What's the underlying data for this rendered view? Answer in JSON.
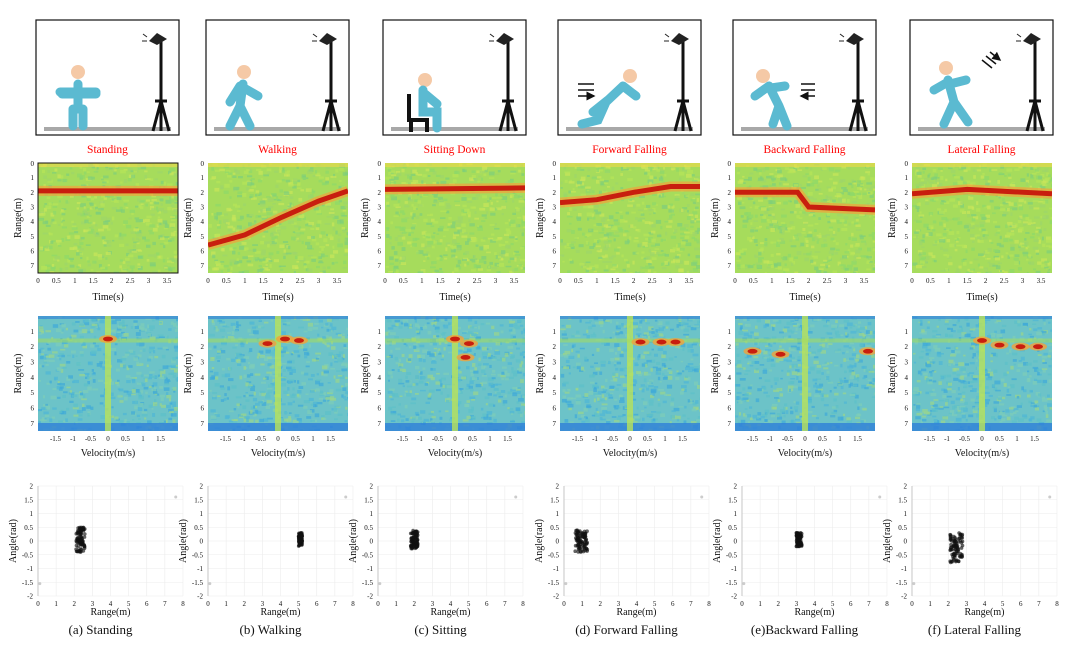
{
  "activities": [
    "Standing",
    "Walking",
    "Sitting Down",
    "Forward Falling",
    "Backward Falling",
    "Lateral Falling"
  ],
  "captions": [
    "(a) Standing",
    "(b) Walking",
    "(c) Sitting",
    "(d) Forward Falling",
    "(e)Backward Falling",
    "(f) Lateral Falling"
  ],
  "labels": {
    "range_axis": "Range(m)",
    "time_axis": "Time(s)",
    "velocity_axis": "Velocity(m/s)",
    "angle_axis": "Angle(rad)"
  },
  "colors": {
    "activity_label": "#ff0000",
    "figure": "#5bbad1",
    "floor": "#a8a8a8",
    "heatmap_background": "#a8e05a",
    "heatmap_hot": "#c81e0f"
  },
  "chart_data": [
    {
      "type": "heatmap",
      "name": "range-time maps",
      "xlabel": "Time(s)",
      "ylabel": "Range(m)",
      "x_ticks": [
        "0",
        "0.5",
        "1",
        "1.5",
        "2",
        "2.5",
        "3",
        "3.5"
      ],
      "y_ticks": [
        "1",
        "2",
        "3",
        "4",
        "5",
        "6",
        "7"
      ],
      "xlim": [
        0,
        3.8
      ],
      "ylim": [
        0,
        7.5
      ],
      "panels": [
        {
          "activity": "Standing",
          "trace": [
            [
              0,
              1.9
            ],
            [
              3.8,
              1.9
            ]
          ]
        },
        {
          "activity": "Walking",
          "trace": [
            [
              0,
              5.6
            ],
            [
              1,
              4.9
            ],
            [
              2,
              3.7
            ],
            [
              3,
              2.6
            ],
            [
              3.8,
              1.9
            ]
          ]
        },
        {
          "activity": "Sitting Down",
          "trace": [
            [
              0,
              1.8
            ],
            [
              3.8,
              1.7
            ]
          ]
        },
        {
          "activity": "Forward Falling",
          "trace": [
            [
              0,
              2.7
            ],
            [
              1,
              2.5
            ],
            [
              2,
              2.0
            ],
            [
              3,
              1.6
            ],
            [
              3.8,
              1.6
            ]
          ]
        },
        {
          "activity": "Backward Falling",
          "trace": [
            [
              0,
              2.0
            ],
            [
              1.7,
              2.0
            ],
            [
              2,
              3.0
            ],
            [
              3.8,
              3.2
            ]
          ]
        },
        {
          "activity": "Lateral Falling",
          "trace": [
            [
              0,
              2.1
            ],
            [
              1.5,
              1.8
            ],
            [
              3.8,
              2.1
            ]
          ]
        }
      ]
    },
    {
      "type": "heatmap",
      "name": "range-velocity maps",
      "xlabel": "Velocity(m/s)",
      "ylabel": "Range(m)",
      "x_ticks": [
        "-1.5",
        "-1",
        "-0.5",
        "0",
        "0.5",
        "1",
        "1.5"
      ],
      "y_ticks": [
        "1",
        "2",
        "3",
        "4",
        "5",
        "6",
        "7"
      ],
      "xlim": [
        -2,
        2
      ],
      "ylim": [
        0,
        7.5
      ],
      "panels": [
        {
          "activity": "Standing",
          "hotspots": [
            [
              0,
              1.5
            ]
          ]
        },
        {
          "activity": "Walking",
          "hotspots": [
            [
              0.2,
              1.5
            ],
            [
              0.6,
              1.6
            ],
            [
              -0.3,
              1.8
            ]
          ]
        },
        {
          "activity": "Sitting Down",
          "hotspots": [
            [
              0,
              1.5
            ],
            [
              0.4,
              1.8
            ],
            [
              0.3,
              2.7
            ]
          ]
        },
        {
          "activity": "Forward Falling",
          "hotspots": [
            [
              0.3,
              1.7
            ],
            [
              0.9,
              1.7
            ],
            [
              1.3,
              1.7
            ]
          ]
        },
        {
          "activity": "Backward Falling",
          "hotspots": [
            [
              -1.5,
              2.3
            ],
            [
              -0.7,
              2.5
            ],
            [
              1.8,
              2.3
            ]
          ]
        },
        {
          "activity": "Lateral Falling",
          "hotspots": [
            [
              0,
              1.6
            ],
            [
              0.5,
              1.9
            ],
            [
              1.1,
              2.0
            ],
            [
              1.6,
              2.0
            ]
          ]
        }
      ]
    },
    {
      "type": "scatter",
      "name": "range-angle point clouds",
      "xlabel": "Range(m)",
      "ylabel": "Angle(rad)",
      "x_ticks": [
        "0",
        "1",
        "2",
        "3",
        "4",
        "5",
        "6",
        "7",
        "8"
      ],
      "y_ticks": [
        "2",
        "1.5",
        "1",
        "0.5",
        "0",
        "-0.5",
        "-1",
        "-1.5",
        "-2"
      ],
      "xlim": [
        0,
        8
      ],
      "ylim": [
        -2,
        2
      ],
      "clusters": [
        {
          "activity": "Standing",
          "x_range": [
            2.1,
            2.6
          ],
          "y_range": [
            -0.4,
            0.5
          ]
        },
        {
          "activity": "Walking",
          "x_range": [
            5.0,
            5.2
          ],
          "y_range": [
            -0.2,
            0.3
          ]
        },
        {
          "activity": "Sitting",
          "x_range": [
            1.8,
            2.2
          ],
          "y_range": [
            -0.3,
            0.4
          ]
        },
        {
          "activity": "Forward Falling",
          "x_range": [
            0.6,
            1.3
          ],
          "y_range": [
            -0.4,
            0.4
          ]
        },
        {
          "activity": "Backward Falling",
          "x_range": [
            3.0,
            3.3
          ],
          "y_range": [
            -0.2,
            0.3
          ]
        },
        {
          "activity": "Lateral Falling",
          "x_range": [
            2.1,
            2.8
          ],
          "y_range": [
            -0.8,
            0.3
          ]
        }
      ]
    }
  ]
}
